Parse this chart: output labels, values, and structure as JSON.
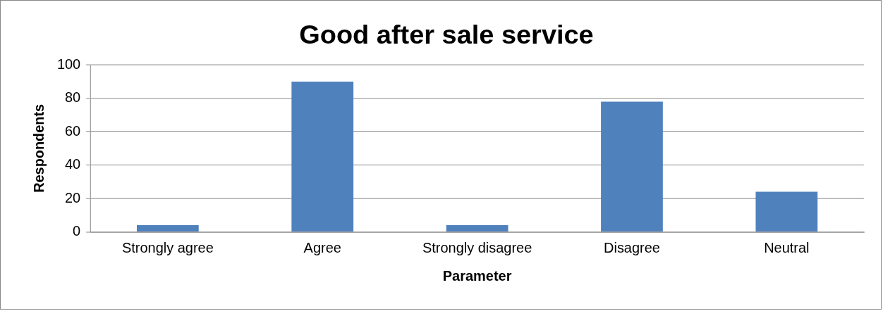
{
  "chart_data": {
    "type": "bar",
    "title": "Good after sale service",
    "xlabel": "Parameter",
    "ylabel": "Respondents",
    "categories": [
      "Strongly agree",
      "Agree",
      "Strongly disagree",
      "Disagree",
      "Neutral"
    ],
    "values": [
      4,
      90,
      4,
      78,
      24
    ],
    "color": "#4f81bd",
    "ylim": [
      0,
      100
    ],
    "yticks": [
      0,
      20,
      40,
      60,
      80,
      100
    ],
    "grid": "y"
  }
}
